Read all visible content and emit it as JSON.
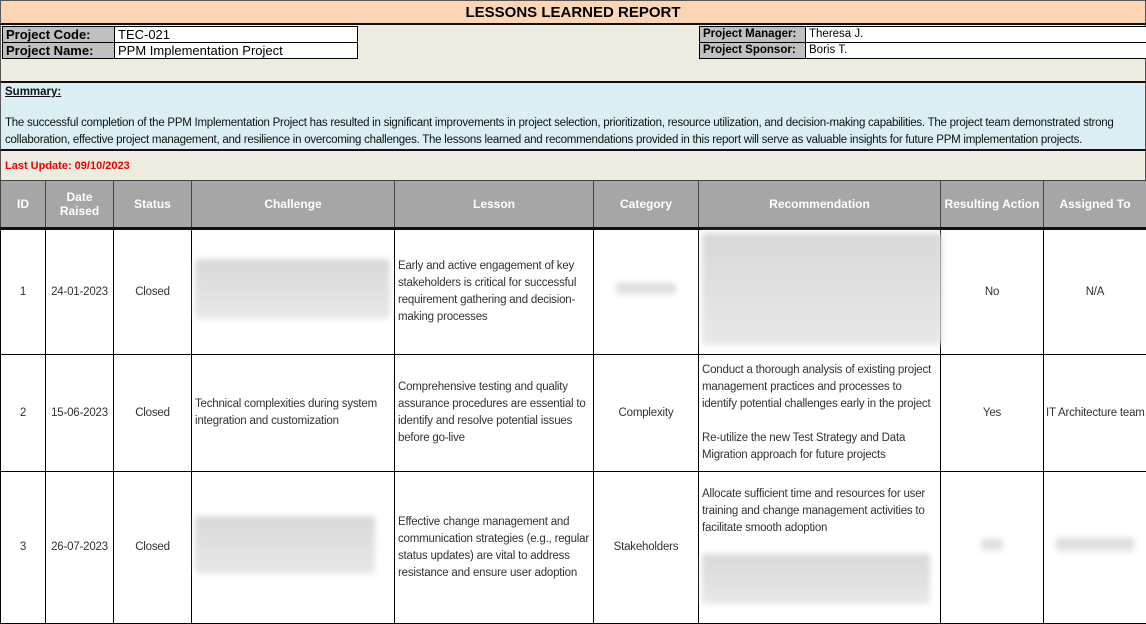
{
  "title": "LESSONS LEARNED REPORT",
  "project": {
    "code_label": "Project Code:",
    "code": "TEC-021",
    "name_label": "Project Name:",
    "name": "PPM Implementation Project",
    "manager_label": "Project Manager:",
    "manager": "Theresa J.",
    "sponsor_label": "Project Sponsor:",
    "sponsor": "Boris T."
  },
  "summary": {
    "label": "Summary:",
    "text": "The successful completion of the PPM Implementation Project has resulted in significant improvements in project selection, prioritization, resource utilization, and decision-making capabilities. The project team demonstrated strong collaboration, effective project management, and resilience in overcoming challenges. The lessons learned and recommendations provided in this report will serve as valuable insights for future PPM implementation projects."
  },
  "last_update": "Last Update: 09/10/2023",
  "colors": {
    "title_bg": "#fcd5b4",
    "info_bg": "#eeebe0",
    "summary_bg": "#daeef3",
    "header_bg": "#a6a6a6",
    "last_update": "#e00000"
  },
  "table": {
    "headers": [
      "ID",
      "Date Raised",
      "Status",
      "Challenge",
      "Lesson",
      "Category",
      "Recommendation",
      "Resulting Action",
      "Assigned To"
    ],
    "rows": [
      {
        "id": "1",
        "date": "24-01-2023",
        "status": "Closed",
        "challenge": "",
        "lesson": "Early and active engagement of key stakeholders is critical for successful requirement gathering and decision-making processes",
        "category": "",
        "rec1": "",
        "rec2": "",
        "action": "No",
        "assigned": "N/A"
      },
      {
        "id": "2",
        "date": "15-06-2023",
        "status": "Closed",
        "challenge": "Technical complexities during system integration and customization",
        "lesson": "Comprehensive testing and quality assurance procedures are essential to identify and resolve potential issues before go-live",
        "category": "Complexity",
        "rec1": "Conduct a thorough analysis of existing project management practices and processes to identify potential challenges early in the project",
        "rec2": "Re-utilize the new Test Strategy and Data Migration approach for future projects",
        "action": "Yes",
        "assigned": "IT Architecture team"
      },
      {
        "id": "3",
        "date": "26-07-2023",
        "status": "Closed",
        "challenge": "",
        "lesson": "Effective change management and communication strategies (e.g., regular status updates) are vital to address resistance and ensure user adoption",
        "category": "Stakeholders",
        "rec1": "Allocate sufficient time and resources for user training and change management activities to facilitate smooth adoption",
        "rec2": "",
        "action": "",
        "assigned": ""
      }
    ]
  }
}
